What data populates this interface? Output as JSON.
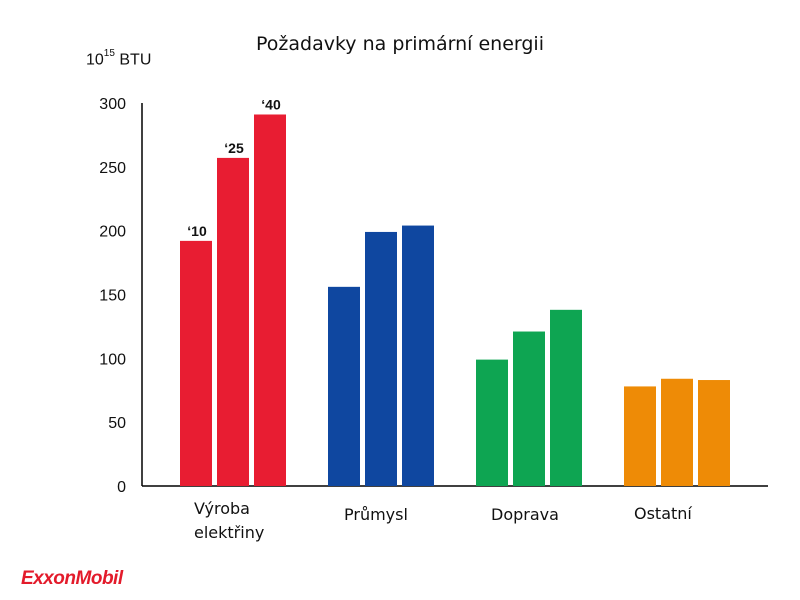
{
  "chart_data": {
    "type": "bar",
    "title": "Požadavky na primární energii",
    "unit_base": "10",
    "unit_exp": "15",
    "unit_text": " BTU",
    "ylim": [
      0,
      300
    ],
    "yticks": [
      "0",
      "50",
      "100",
      "150",
      "200",
      "250",
      "300"
    ],
    "year_labels": [
      "‘10",
      "‘25",
      "‘40"
    ],
    "categories": [
      {
        "label_lines": [
          "Výroba",
          "elektřiny"
        ],
        "color": "#e81d32",
        "values": [
          192,
          257,
          291
        ]
      },
      {
        "label_lines": [
          "Průmysl"
        ],
        "color": "#0f47a0",
        "values": [
          156,
          199,
          204
        ]
      },
      {
        "label_lines": [
          "Doprava"
        ],
        "color": "#0ea552",
        "values": [
          99,
          121,
          138
        ]
      },
      {
        "label_lines": [
          "Ostatní"
        ],
        "color": "#ee8b06",
        "values": [
          78,
          84,
          83
        ]
      }
    ],
    "grid": false,
    "legend": "none"
  },
  "brand": {
    "logo_text": "ExxonMobil",
    "color": "#e31b2b"
  }
}
